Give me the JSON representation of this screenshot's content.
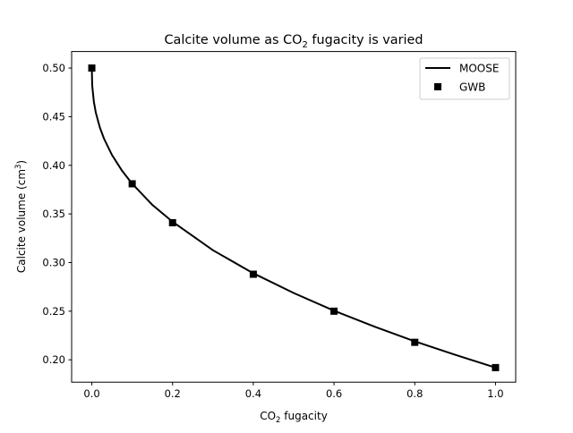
{
  "chart_data": {
    "type": "line",
    "title": {
      "pre": "Calcite volume as CO",
      "sub": "2",
      "post": " fugacity is varied"
    },
    "xlabel": {
      "pre": "CO",
      "sub": "2",
      "post": " fugacity"
    },
    "ylabel": {
      "pre": "Calcite volume (cm",
      "sup": "3",
      "post": ")"
    },
    "xlim": [
      -0.05,
      1.05
    ],
    "ylim": [
      0.177,
      0.517
    ],
    "xticks": [
      "0.0",
      "0.2",
      "0.4",
      "0.6",
      "0.8",
      "1.0"
    ],
    "yticks": [
      "0.20",
      "0.25",
      "0.30",
      "0.35",
      "0.40",
      "0.45",
      "0.50"
    ],
    "grid": false,
    "legend_position": "top-right",
    "series": [
      {
        "name": "MOOSE",
        "style": "line",
        "color": "#000000",
        "x": [
          0,
          0.001,
          0.005,
          0.01,
          0.02,
          0.03,
          0.05,
          0.075,
          0.1,
          0.15,
          0.2,
          0.3,
          0.4,
          0.5,
          0.6,
          0.7,
          0.8,
          0.9,
          1.0
        ],
        "y": [
          0.5,
          0.482,
          0.4655,
          0.454,
          0.4388,
          0.4276,
          0.4106,
          0.3944,
          0.3811,
          0.3593,
          0.342,
          0.3127,
          0.289,
          0.2687,
          0.2505,
          0.2342,
          0.219,
          0.2052,
          0.192
        ]
      },
      {
        "name": "GWB",
        "style": "square-markers",
        "color": "#000000",
        "x": [
          0,
          0.1,
          0.2,
          0.4,
          0.6,
          0.8,
          1.0
        ],
        "y": [
          0.5,
          0.381,
          0.341,
          0.288,
          0.25,
          0.218,
          0.192
        ]
      }
    ]
  }
}
